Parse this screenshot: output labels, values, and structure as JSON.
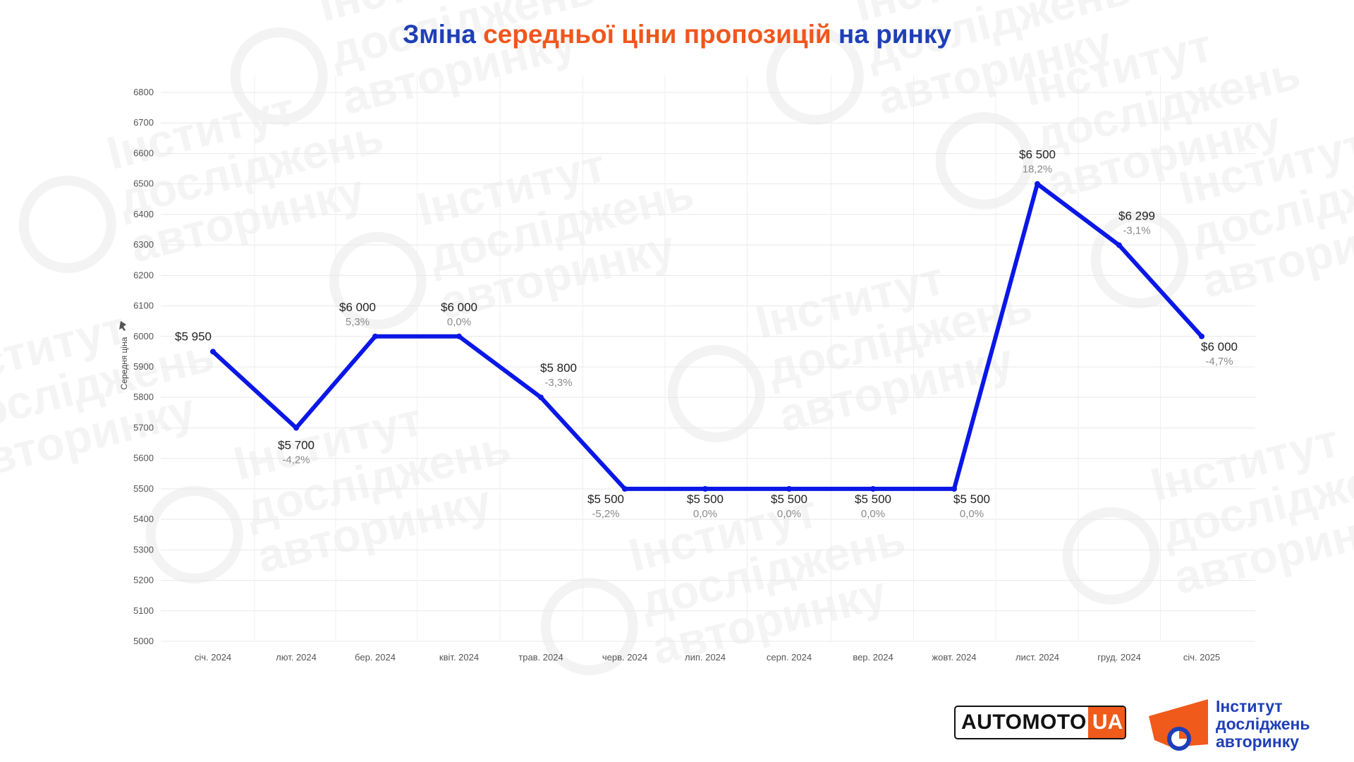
{
  "title": {
    "part1": "Зміна",
    "part2": "середньої ціни пропозицій",
    "part3": "на ринку"
  },
  "colors": {
    "line": "#0a17e6",
    "title_blue": "#1f3fb7",
    "title_orange": "#f0561d",
    "grid": "#e8e8e8",
    "label_main": "#222222",
    "label_pct": "#8a8a8a"
  },
  "chart_data": {
    "type": "line",
    "title": "Зміна середньої ціни пропозицій на ринку",
    "ylabel": "Середня ціна",
    "xlabel": "",
    "ylim": [
      5000,
      6800
    ],
    "yticks": [
      5000,
      5100,
      5200,
      5300,
      5400,
      5500,
      5600,
      5700,
      5800,
      5900,
      6000,
      6100,
      6200,
      6300,
      6400,
      6500,
      6600,
      6700,
      6800
    ],
    "grid": true,
    "categories": [
      "січ. 2024",
      "лют. 2024",
      "бер. 2024",
      "квіт. 2024",
      "трав. 2024",
      "черв. 2024",
      "лип. 2024",
      "серп. 2024",
      "вер. 2024",
      "жовт. 2024",
      "лист. 2024",
      "груд. 2024",
      "січ. 2025"
    ],
    "values": [
      5950,
      5700,
      6000,
      6000,
      5800,
      5500,
      5500,
      5500,
      5500,
      5500,
      6500,
      6299,
      6000
    ],
    "value_labels": [
      "$5 950",
      "$5 700",
      "$6 000",
      "$6 000",
      "$5 800",
      "$5 500",
      "$5 500",
      "$5 500",
      "$5 500",
      "$5 500",
      "$6 500",
      "$6 299",
      "$6 000"
    ],
    "pct_labels": [
      "",
      "-4,2%",
      "5,3%",
      "0,0%",
      "-3,3%",
      "-5,2%",
      "0,0%",
      "0,0%",
      "0,0%",
      "0,0%",
      "18,2%",
      "-3,1%",
      "-4,7%"
    ]
  },
  "logos": {
    "automoto_left": "AUTOMOTO",
    "automoto_right": "UA",
    "institute_line1": "Інститут",
    "institute_line2": "досліджень",
    "institute_line3": "авторинку"
  },
  "watermark_text": [
    "Інститут",
    "досліджень",
    "авторинку"
  ]
}
